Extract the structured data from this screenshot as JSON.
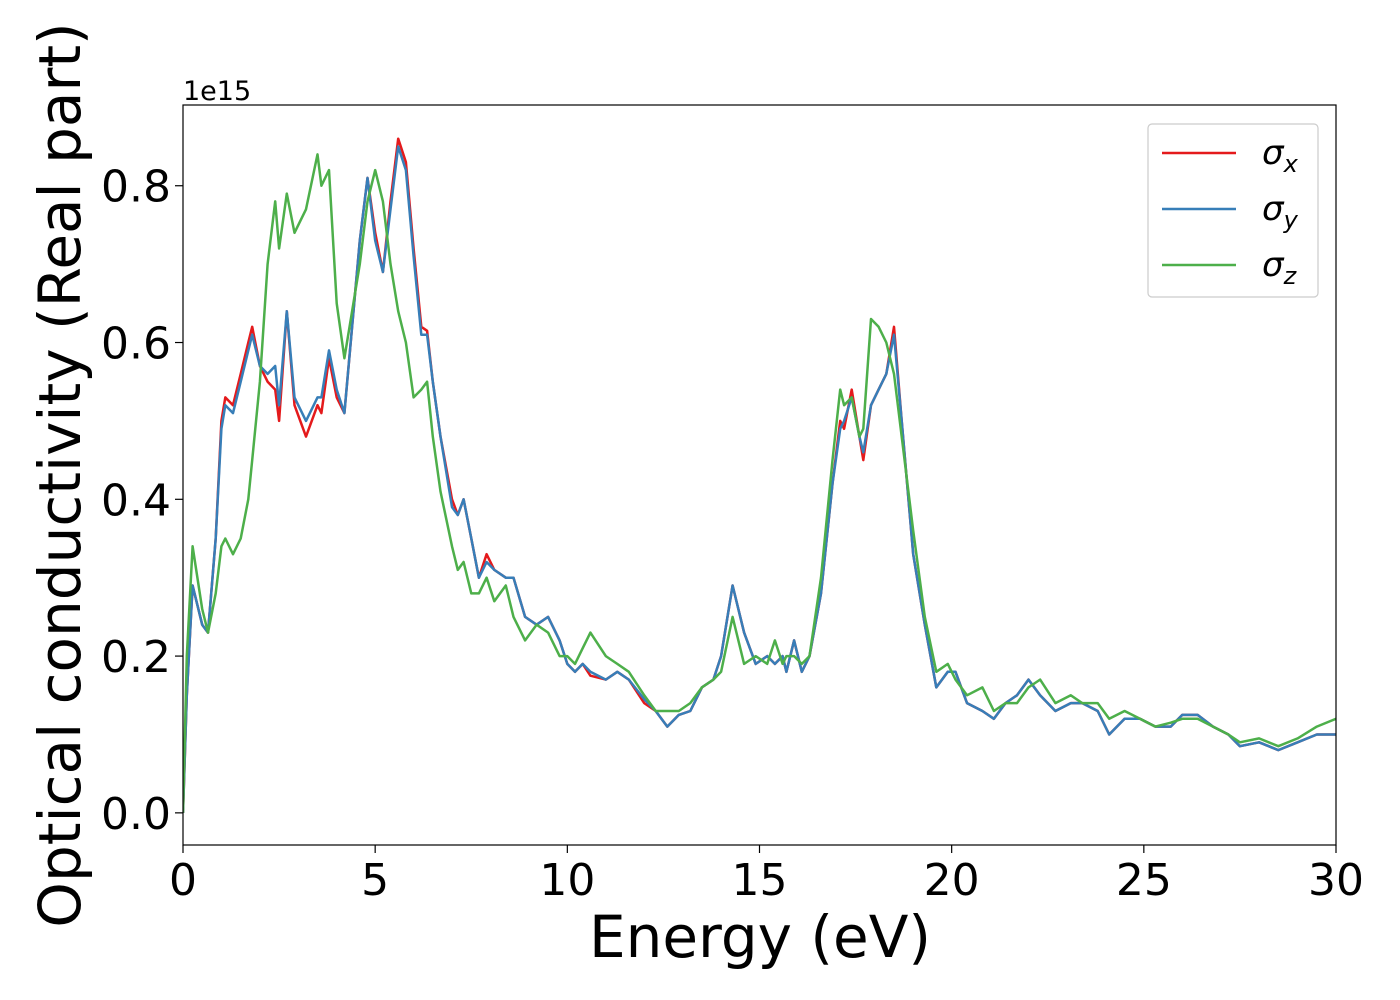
{
  "chart_data": {
    "type": "line",
    "xlabel": "Energy (eV)",
    "ylabel": "Optical conductivity (Real part)",
    "offset_text": "1e15",
    "xlim": [
      0,
      30
    ],
    "ylim": [
      -0.041,
      0.903
    ],
    "xticks": [
      0,
      5,
      10,
      15,
      20,
      25,
      30
    ],
    "yticks": [
      {
        "value": 0,
        "label": "0.0"
      },
      0.2,
      0.4,
      0.6,
      0.8
    ],
    "legend": "upper right",
    "x": [
      0,
      0.1,
      0.25,
      0.5,
      0.65,
      0.85,
      1.0,
      1.1,
      1.3,
      1.5,
      1.7,
      1.8,
      2.0,
      2.2,
      2.4,
      2.5,
      2.7,
      2.9,
      3.2,
      3.5,
      3.6,
      3.8,
      4.0,
      4.2,
      4.4,
      4.6,
      4.8,
      5.0,
      5.2,
      5.4,
      5.6,
      5.8,
      6.0,
      6.2,
      6.35,
      6.5,
      6.7,
      7.0,
      7.15,
      7.3,
      7.5,
      7.7,
      7.9,
      8.1,
      8.4,
      8.6,
      8.9,
      9.2,
      9.5,
      9.8,
      10.0,
      10.2,
      10.4,
      10.6,
      11.0,
      11.3,
      11.6,
      12.0,
      12.3,
      12.6,
      12.9,
      13.2,
      13.5,
      13.8,
      14.0,
      14.3,
      14.6,
      14.9,
      15.2,
      15.4,
      15.6,
      15.7,
      15.9,
      16.1,
      16.3,
      16.6,
      16.9,
      17.1,
      17.2,
      17.4,
      17.6,
      17.7,
      17.9,
      18.1,
      18.3,
      18.5,
      18.7,
      19.0,
      19.3,
      19.6,
      19.9,
      20.1,
      20.4,
      20.8,
      21.1,
      21.4,
      21.7,
      22.0,
      22.3,
      22.7,
      23.1,
      23.4,
      23.8,
      24.1,
      24.5,
      24.9,
      25.3,
      25.7,
      26.0,
      26.4,
      26.8,
      27.2,
      27.5,
      28.0,
      28.5,
      29.0,
      29.5,
      30.0
    ],
    "series": [
      {
        "name": "σx",
        "color": "#e41a1c",
        "values": [
          0,
          0.15,
          0.29,
          0.24,
          0.23,
          0.35,
          0.5,
          0.53,
          0.52,
          0.56,
          0.6,
          0.62,
          0.57,
          0.55,
          0.54,
          0.5,
          0.64,
          0.52,
          0.48,
          0.52,
          0.51,
          0.58,
          0.53,
          0.51,
          0.62,
          0.73,
          0.81,
          0.74,
          0.69,
          0.78,
          0.86,
          0.83,
          0.72,
          0.62,
          0.615,
          0.55,
          0.48,
          0.4,
          0.38,
          0.4,
          0.35,
          0.3,
          0.33,
          0.31,
          0.3,
          0.3,
          0.25,
          0.24,
          0.25,
          0.22,
          0.19,
          0.18,
          0.19,
          0.175,
          0.17,
          0.18,
          0.17,
          0.14,
          0.13,
          0.11,
          0.125,
          0.13,
          0.16,
          0.17,
          0.2,
          0.29,
          0.23,
          0.19,
          0.2,
          0.19,
          0.2,
          0.18,
          0.22,
          0.18,
          0.2,
          0.28,
          0.42,
          0.5,
          0.49,
          0.54,
          0.48,
          0.45,
          0.52,
          0.54,
          0.56,
          0.62,
          0.5,
          0.33,
          0.24,
          0.16,
          0.18,
          0.18,
          0.14,
          0.13,
          0.12,
          0.14,
          0.15,
          0.17,
          0.15,
          0.13,
          0.14,
          0.14,
          0.13,
          0.1,
          0.12,
          0.12,
          0.11,
          0.11,
          0.125,
          0.125,
          0.11,
          0.1,
          0.085,
          0.09,
          0.08,
          0.09,
          0.1,
          0.1
        ]
      },
      {
        "name": "σy",
        "color": "#377eb8",
        "values": [
          0,
          0.15,
          0.29,
          0.24,
          0.23,
          0.35,
          0.49,
          0.52,
          0.51,
          0.55,
          0.59,
          0.61,
          0.57,
          0.56,
          0.57,
          0.52,
          0.64,
          0.53,
          0.5,
          0.53,
          0.53,
          0.59,
          0.54,
          0.51,
          0.62,
          0.73,
          0.81,
          0.73,
          0.69,
          0.77,
          0.85,
          0.82,
          0.71,
          0.61,
          0.61,
          0.55,
          0.48,
          0.39,
          0.38,
          0.4,
          0.35,
          0.3,
          0.32,
          0.31,
          0.3,
          0.3,
          0.25,
          0.24,
          0.25,
          0.22,
          0.19,
          0.18,
          0.19,
          0.18,
          0.17,
          0.18,
          0.17,
          0.145,
          0.13,
          0.11,
          0.125,
          0.13,
          0.16,
          0.17,
          0.2,
          0.29,
          0.23,
          0.19,
          0.2,
          0.19,
          0.2,
          0.18,
          0.22,
          0.18,
          0.2,
          0.28,
          0.42,
          0.49,
          0.5,
          0.53,
          0.48,
          0.46,
          0.52,
          0.54,
          0.56,
          0.61,
          0.5,
          0.33,
          0.24,
          0.16,
          0.18,
          0.18,
          0.14,
          0.13,
          0.12,
          0.14,
          0.15,
          0.17,
          0.15,
          0.13,
          0.14,
          0.14,
          0.13,
          0.1,
          0.12,
          0.12,
          0.11,
          0.11,
          0.125,
          0.125,
          0.11,
          0.1,
          0.085,
          0.09,
          0.08,
          0.09,
          0.1,
          0.1
        ]
      },
      {
        "name": "σz",
        "color": "#4daf4a",
        "values": [
          0,
          0.2,
          0.34,
          0.26,
          0.23,
          0.28,
          0.34,
          0.35,
          0.33,
          0.35,
          0.4,
          0.45,
          0.55,
          0.7,
          0.78,
          0.72,
          0.79,
          0.74,
          0.77,
          0.84,
          0.8,
          0.82,
          0.65,
          0.58,
          0.64,
          0.7,
          0.78,
          0.82,
          0.78,
          0.7,
          0.64,
          0.6,
          0.53,
          0.54,
          0.55,
          0.48,
          0.41,
          0.34,
          0.31,
          0.32,
          0.28,
          0.28,
          0.3,
          0.27,
          0.29,
          0.25,
          0.22,
          0.24,
          0.23,
          0.2,
          0.2,
          0.19,
          0.21,
          0.23,
          0.2,
          0.19,
          0.18,
          0.15,
          0.13,
          0.13,
          0.13,
          0.14,
          0.16,
          0.17,
          0.18,
          0.25,
          0.19,
          0.2,
          0.19,
          0.22,
          0.19,
          0.2,
          0.2,
          0.19,
          0.2,
          0.3,
          0.45,
          0.54,
          0.52,
          0.53,
          0.48,
          0.49,
          0.63,
          0.62,
          0.6,
          0.56,
          0.48,
          0.36,
          0.25,
          0.18,
          0.19,
          0.17,
          0.15,
          0.16,
          0.13,
          0.14,
          0.14,
          0.16,
          0.17,
          0.14,
          0.15,
          0.14,
          0.14,
          0.12,
          0.13,
          0.12,
          0.11,
          0.115,
          0.12,
          0.12,
          0.11,
          0.1,
          0.09,
          0.095,
          0.085,
          0.095,
          0.11,
          0.12
        ]
      }
    ]
  }
}
